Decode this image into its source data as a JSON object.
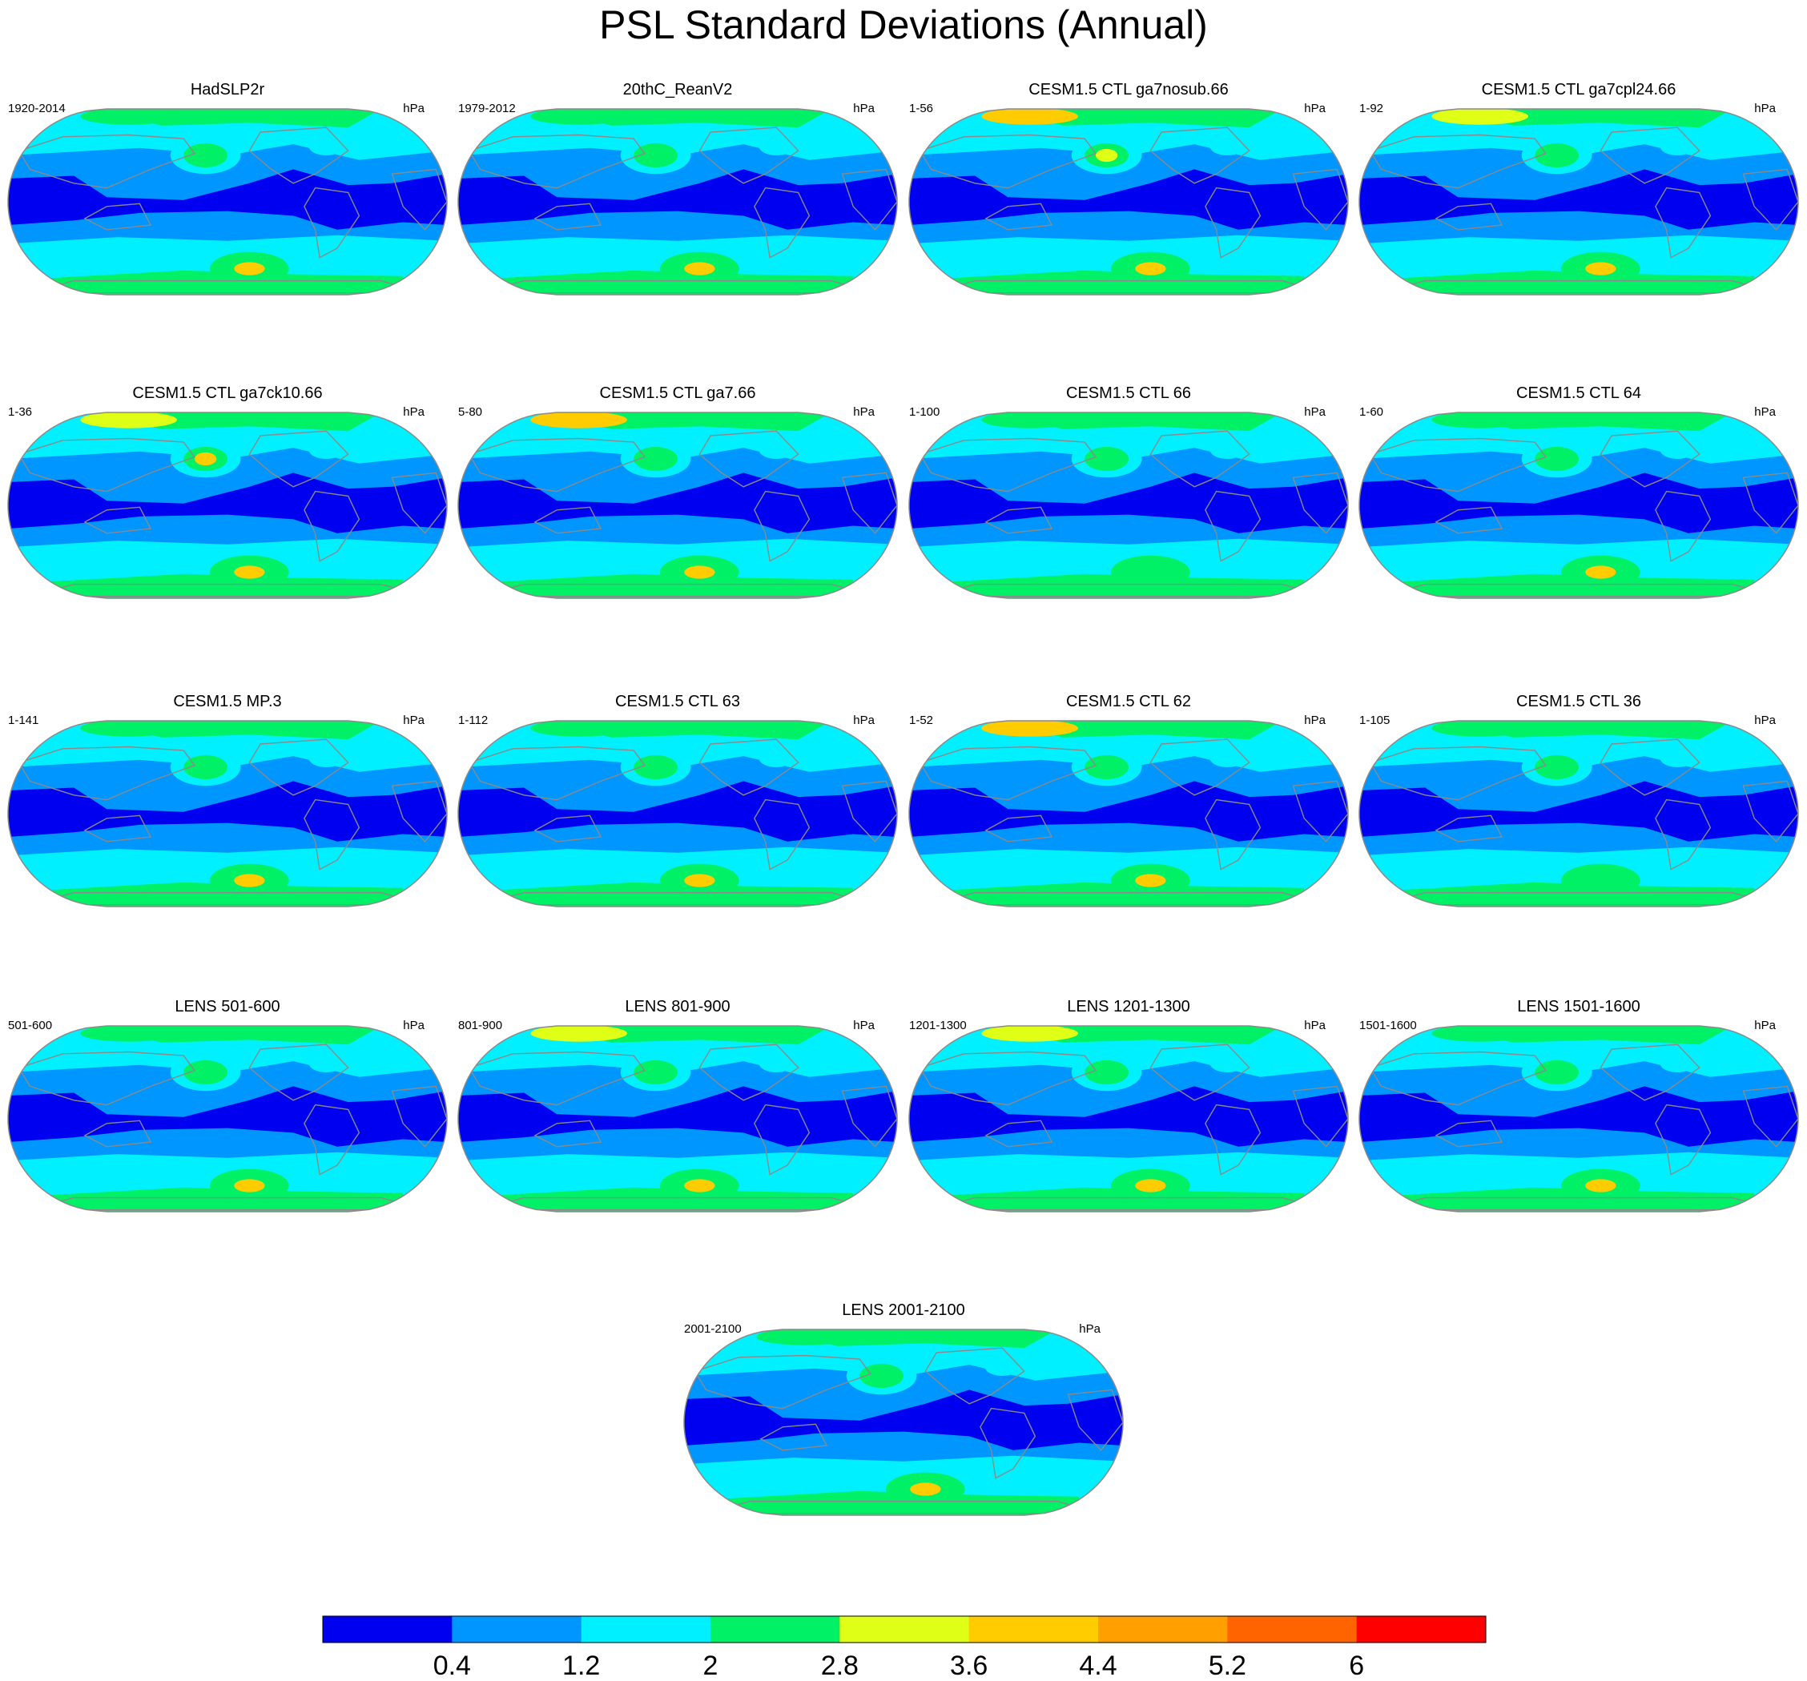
{
  "title": "PSL Standard Deviations (Annual)",
  "chart_data": {
    "type": "heatmap",
    "projection": "Robinson-like world maps, Pacific-centered",
    "panels": [
      {
        "title": "HadSLP2r",
        "left": "1920-2014",
        "right": "hPa",
        "subpolar_max": "3.6-4.4",
        "nh_max": "2-2.8",
        "arctic_max": "2-2.8"
      },
      {
        "title": "20thC_ReanV2",
        "left": "1979-2012",
        "right": "hPa",
        "subpolar_max": "3.6-4.4",
        "nh_max": "2-2.8",
        "arctic_max": "2-2.8"
      },
      {
        "title": "CESM1.5 CTL ga7nosub.66",
        "left": "1-56",
        "right": "hPa",
        "subpolar_max": "3.6-4.4",
        "nh_max": "2.8-3.6",
        "arctic_max": "3.6-4.4"
      },
      {
        "title": "CESM1.5 CTL ga7cpl24.66",
        "left": "1-92",
        "right": "hPa",
        "subpolar_max": "3.6-4.4",
        "nh_max": "2-2.8",
        "arctic_max": "2.8-3.6"
      },
      {
        "title": "CESM1.5 CTL ga7ck10.66",
        "left": "1-36",
        "right": "hPa",
        "subpolar_max": "3.6-4.4",
        "nh_max": "3.6-4.4",
        "arctic_max": "2.8-3.6"
      },
      {
        "title": "CESM1.5 CTL ga7.66",
        "left": "5-80",
        "right": "hPa",
        "subpolar_max": "3.6-4.4",
        "nh_max": "2-2.8",
        "arctic_max": "3.6-4.4"
      },
      {
        "title": "CESM1.5 CTL 66",
        "left": "1-100",
        "right": "hPa",
        "subpolar_max": "2-2.8",
        "nh_max": "2-2.8",
        "arctic_max": "2-2.8"
      },
      {
        "title": "CESM1.5 CTL 64",
        "left": "1-60",
        "right": "hPa",
        "subpolar_max": "3.6-4.4",
        "nh_max": "2-2.8",
        "arctic_max": "2-2.8"
      },
      {
        "title": "CESM1.5 MP.3",
        "left": "1-141",
        "right": "hPa",
        "subpolar_max": "3.6-4.4",
        "nh_max": "2-2.8",
        "arctic_max": "2-2.8"
      },
      {
        "title": "CESM1.5 CTL 63",
        "left": "1-112",
        "right": "hPa",
        "subpolar_max": "3.6-4.4",
        "nh_max": "2-2.8",
        "arctic_max": "2-2.8"
      },
      {
        "title": "CESM1.5 CTL 62",
        "left": "1-52",
        "right": "hPa",
        "subpolar_max": "3.6-4.4",
        "nh_max": "2-2.8",
        "arctic_max": "3.6-4.4"
      },
      {
        "title": "CESM1.5 CTL 36",
        "left": "1-105",
        "right": "hPa",
        "subpolar_max": "2-2.8",
        "nh_max": "2-2.8",
        "arctic_max": "2-2.8"
      },
      {
        "title": "LENS 501-600",
        "left": "501-600",
        "right": "hPa",
        "subpolar_max": "3.6-4.4",
        "nh_max": "2-2.8",
        "arctic_max": "2-2.8"
      },
      {
        "title": "LENS 801-900",
        "left": "801-900",
        "right": "hPa",
        "subpolar_max": "3.6-4.4",
        "nh_max": "2-2.8",
        "arctic_max": "2.8-3.6"
      },
      {
        "title": "LENS 1201-1300",
        "left": "1201-1300",
        "right": "hPa",
        "subpolar_max": "3.6-4.4",
        "nh_max": "2-2.8",
        "arctic_max": "2.8-3.6"
      },
      {
        "title": "LENS 1501-1600",
        "left": "1501-1600",
        "right": "hPa",
        "subpolar_max": "3.6-4.4",
        "nh_max": "2-2.8",
        "arctic_max": "2-2.8"
      },
      {
        "title": "LENS 2001-2100",
        "left": "2001-2100",
        "right": "hPa",
        "subpolar_max": "3.6-4.4",
        "nh_max": "2-2.8",
        "arctic_max": "2-2.8"
      }
    ],
    "colorbar": {
      "labels": [
        "0.4",
        "1.2",
        "2",
        "2.8",
        "3.6",
        "4.4",
        "5.2",
        "6"
      ],
      "colors": [
        "#0000f0",
        "#0096ff",
        "#00f0ff",
        "#00f066",
        "#e0ff16",
        "#ffcc00",
        "#ffa000",
        "#ff6400",
        "#ff0000"
      ]
    }
  },
  "colors": {
    "land_outline": "#8a8a8a",
    "map_border": "#8a8a8a"
  }
}
